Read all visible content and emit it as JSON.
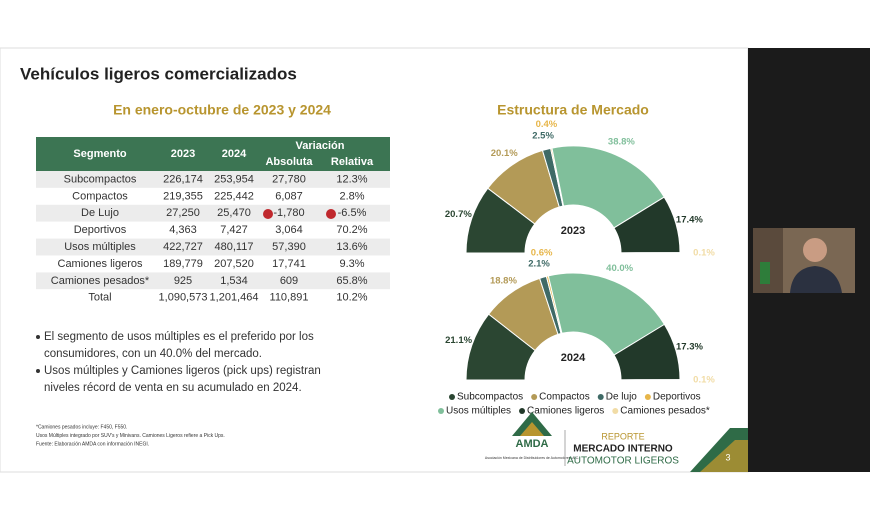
{
  "slide": {
    "title": "Vehículos ligeros comercializados",
    "subtitle": "En enero-octubre de 2023 y 2024",
    "table": {
      "header": [
        "Segmento",
        "2023",
        "2024",
        "Variación",
        "Absoluta",
        "Relativa"
      ],
      "rows": [
        [
          "Subcompactos",
          "226,174",
          "253,954",
          "27,780",
          "12.3%"
        ],
        [
          "Compactos",
          "219,355",
          "225,442",
          "6,087",
          "2.8%"
        ],
        [
          "De Lujo",
          "27,250",
          "25,470",
          "-1,780",
          "-6.5%"
        ],
        [
          "Deportivos",
          "4,363",
          "7,427",
          "3,064",
          "70.2%"
        ],
        [
          "Usos múltiples",
          "422,727",
          "480,117",
          "57,390",
          "13.6%"
        ],
        [
          "Camiones ligeros",
          "189,779",
          "207,520",
          "17,741",
          "9.3%"
        ],
        [
          "Camiones pesados*",
          "925",
          "1,534",
          "609",
          "65.8%"
        ],
        [
          "Total",
          "1,090,573",
          "1,201,464",
          "110,891",
          "10.2%"
        ]
      ]
    },
    "bullets": [
      [
        "El segmento de usos múltiples es el preferido por los",
        "consumidores, con un 40.0% del mercado."
      ],
      [
        "Usos múltiples y Camiones ligeros (pick ups) registran",
        "niveles récord de venta en su acumulado en 2024."
      ]
    ],
    "footnotes": [
      "*Camiones pesados incluye: F450, F550.",
      "Usos Múltiples integrado por SUV's y Minivans. Camiones Ligeros refiere a Pick Ups.",
      "Fuente: Elaboración AMDA con información INEGI."
    ],
    "logo": {
      "name": "AMDA",
      "caption": "Asociación Mexicana de Distribuidores de Automotores, A.C."
    },
    "report": [
      "REPORTE",
      "MERCADO INTERNO",
      "AUTOMOTOR LIGEROS"
    ],
    "page": "3"
  },
  "chart_data": {
    "type": "donut",
    "title": "Estructura de Mercado",
    "categories": [
      "Subcompactos",
      "Compactos",
      "De lujo",
      "Deportivos",
      "Usos múltiples",
      "Camiones ligeros",
      "Camiones pesados*"
    ],
    "colors": [
      "#2b4632",
      "#b39a57",
      "#3f6a66",
      "#e7b64a",
      "#80bf9b",
      "#22392a",
      "#f1dca6"
    ],
    "series": [
      {
        "name": "2023",
        "values": [
          20.7,
          20.1,
          2.5,
          0.4,
          38.8,
          17.4,
          0.1
        ],
        "value_labels": [
          "20.7%",
          "20.1%",
          "2.5%",
          "0.4%",
          "38.8%",
          "17.4%",
          "0.1%"
        ]
      },
      {
        "name": "2024",
        "values": [
          21.1,
          18.8,
          2.1,
          0.6,
          40.0,
          17.3,
          0.1
        ],
        "value_labels": [
          "21.1%",
          "18.8%",
          "2.1%",
          "0.6%",
          "40.0%",
          "17.3%",
          "0.1%"
        ]
      }
    ]
  }
}
